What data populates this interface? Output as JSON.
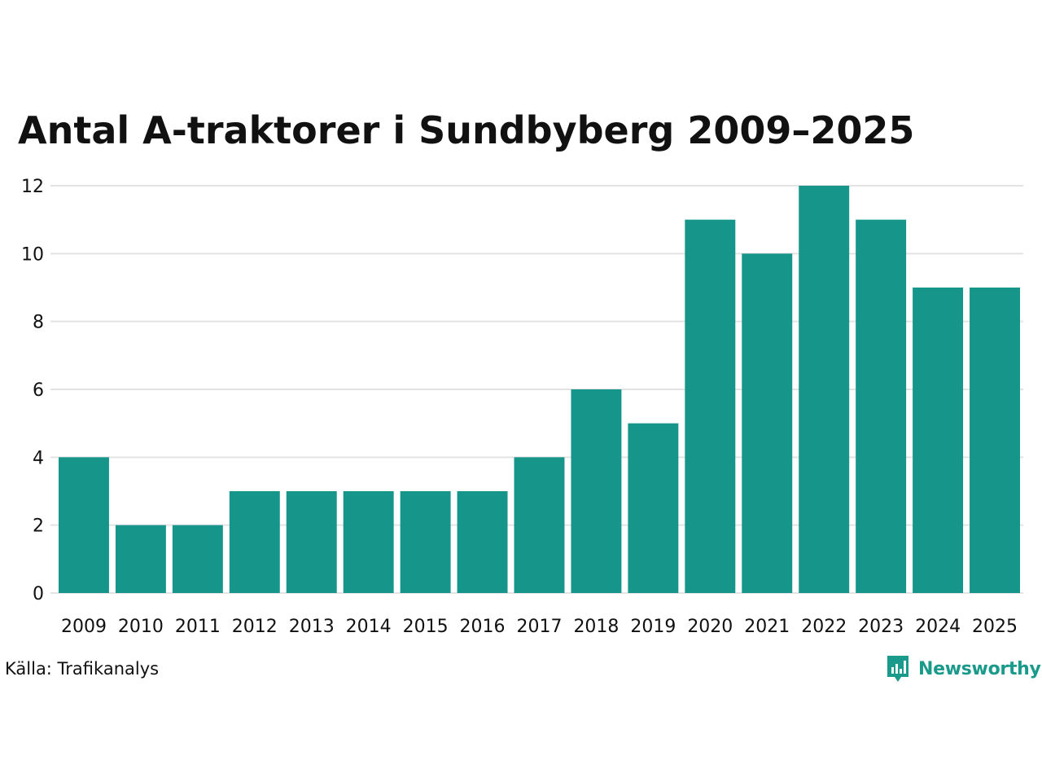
{
  "chart_data": {
    "type": "bar",
    "title": "Antal A-traktorer i Sundbyberg 2009–2025",
    "xlabel": "",
    "ylabel": "",
    "categories": [
      "2009",
      "2010",
      "2011",
      "2012",
      "2013",
      "2014",
      "2015",
      "2016",
      "2017",
      "2018",
      "2019",
      "2020",
      "2021",
      "2022",
      "2023",
      "2024",
      "2025"
    ],
    "values": [
      4,
      2,
      2,
      3,
      3,
      3,
      3,
      3,
      4,
      6,
      5,
      11,
      10,
      12,
      11,
      9,
      9
    ],
    "ylim": [
      0,
      12
    ],
    "yticks": [
      "0",
      "2",
      "4",
      "6",
      "8",
      "10",
      "12"
    ],
    "grid": true,
    "bar_color": "#16968a",
    "grid_color": "#e3e3e3"
  },
  "footer": {
    "source": "Källa: Trafikanalys",
    "brand": "Newsworthy",
    "brand_color": "#1a9a8a",
    "brand_icon": "newsworthy-logo-icon"
  }
}
